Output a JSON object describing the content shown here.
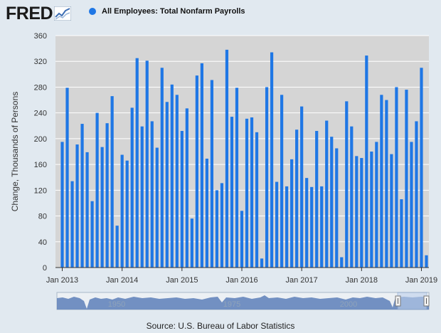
{
  "header": {
    "logo_text": "FRED",
    "logo_icon": "fred-graph-icon"
  },
  "legend": {
    "label": "All Employees: Total Nonfarm Payrolls",
    "color": "#1f77e5"
  },
  "source": "Source: U.S. Bureau of Labor Statistics",
  "colors": {
    "bar": "#1f77e5",
    "plot_background": "#d5d5d5",
    "page_background": "#e1e9f0",
    "navigator_fill": "#5d7fb8",
    "navigator_highlight": "#bcd0ec"
  },
  "chart_data": {
    "type": "bar",
    "title": "",
    "xlabel": "",
    "ylabel": "Change, Thousands of Persons",
    "ylim": [
      0,
      360
    ],
    "y_ticks": [
      0,
      40,
      80,
      120,
      160,
      200,
      240,
      280,
      320,
      360
    ],
    "grid": true,
    "x_start": "Jan 2013",
    "x_tick_labels": [
      "Jan 2013",
      "Jan 2014",
      "Jan 2015",
      "Jan 2016",
      "Jan 2017",
      "Jan 2018",
      "Jan 2019"
    ],
    "series": [
      {
        "name": "All Employees: Total Nonfarm Payrolls",
        "values": [
          195,
          279,
          134,
          191,
          223,
          179,
          103,
          240,
          187,
          224,
          266,
          65,
          175,
          166,
          248,
          325,
          219,
          321,
          227,
          186,
          310,
          257,
          284,
          268,
          212,
          247,
          76,
          298,
          317,
          169,
          291,
          120,
          131,
          338,
          234,
          279,
          88,
          231,
          233,
          210,
          14,
          280,
          334,
          133,
          268,
          126,
          168,
          214,
          250,
          139,
          125,
          212,
          126,
          228,
          203,
          185,
          16,
          258,
          219,
          173,
          170,
          329,
          180,
          195,
          268,
          260,
          176,
          280,
          106,
          276,
          195,
          227,
          310,
          19
        ]
      }
    ],
    "navigator": {
      "tick_labels": [
        "1950",
        "1975",
        "2000"
      ]
    }
  }
}
